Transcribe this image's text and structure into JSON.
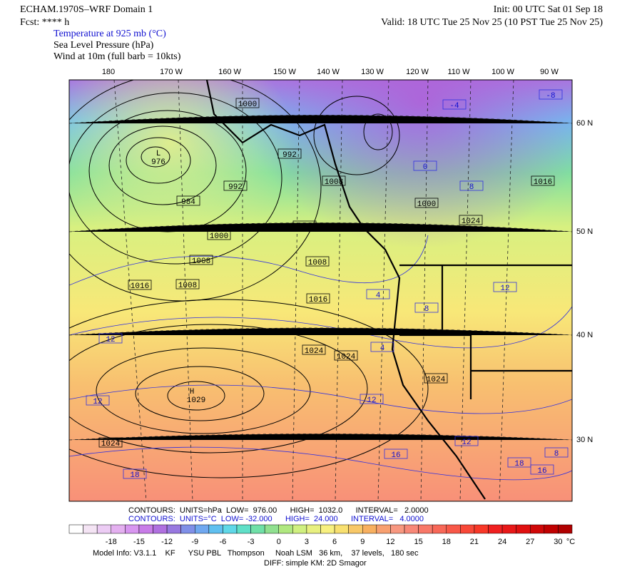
{
  "header": {
    "model": "ECHAM.1970S–WRF Domain 1",
    "fcst": "Fcst: **** h",
    "field1": "Temperature at 925 mb (°C)",
    "field2": "Sea Level Pressure (hPa)",
    "field3": "Wind at 10m (full barb = 10kts)",
    "init": "Init: 00 UTC Sat 01 Sep 18",
    "valid": "Valid: 18 UTC Tue 25 Nov 25 (10 PST Tue 25 Nov 25)"
  },
  "map": {
    "lon_labels": [
      "180",
      "170 W",
      "160 W",
      "150 W",
      "140 W",
      "130 W",
      "120 W",
      "110 W",
      "100 W",
      "90 W"
    ],
    "lat_labels": [
      "60 N",
      "50 N",
      "40 N",
      "30 N"
    ],
    "low": {
      "symbol": "L",
      "value": "976"
    },
    "high": {
      "symbol": "H",
      "value": "1029"
    },
    "pressure_labels": [
      "1000",
      "992",
      "992",
      "984",
      "1008",
      "1000",
      "1000",
      "1008",
      "1016",
      "1016",
      "1008",
      "1024",
      "1024",
      "1024",
      "1024",
      "1000",
      "1008",
      "1016",
      "1024"
    ],
    "temp_labels": [
      "12",
      "12",
      "12",
      "16",
      "18",
      "18",
      "12",
      "4",
      "8",
      "0",
      "-4",
      "8",
      "12",
      "16",
      "8",
      "-8",
      "4"
    ]
  },
  "contour_info": {
    "pressure": "CONTOURS:  UNITS=hPa  LOW=  976.00      HIGH=  1032.0      INTERVAL=   2.0000",
    "temperature": "CONTOURS:  UNITS=°C  LOW= -32.000      HIGH=  24.000      INTERVAL=   4.0000"
  },
  "colorbar": {
    "labels": [
      "-18",
      "-15",
      "-12",
      "-9",
      "-6",
      "-3",
      "0",
      "3",
      "6",
      "9",
      "12",
      "15",
      "18",
      "21",
      "24",
      "27",
      "30"
    ],
    "unit": "°C",
    "colors": [
      "#ffffff",
      "#f4e4f4",
      "#ecccf4",
      "#e4b0f0",
      "#d896f0",
      "#c87ce8",
      "#b070e0",
      "#9878e0",
      "#8090e8",
      "#70a8f0",
      "#60c0f0",
      "#60d8e8",
      "#60e0c8",
      "#70e0a8",
      "#90e090",
      "#b0e880",
      "#d0f080",
      "#e8f080",
      "#f8f080",
      "#f8e070",
      "#f8c868",
      "#f8b060",
      "#f8a070",
      "#f89880",
      "#f88878",
      "#f87868",
      "#f86858",
      "#f85848",
      "#f84838",
      "#f83828",
      "#f02020",
      "#e81818",
      "#e01010",
      "#d00808",
      "#c00000",
      "#b00000"
    ]
  },
  "footer": {
    "line1": "Model Info: V3.1.1    KF      YSU PBL   Thompson     Noah LSM   36 km,    37 levels,   180 sec",
    "line2": "DIFF: simple KM: 2D Smagor"
  }
}
